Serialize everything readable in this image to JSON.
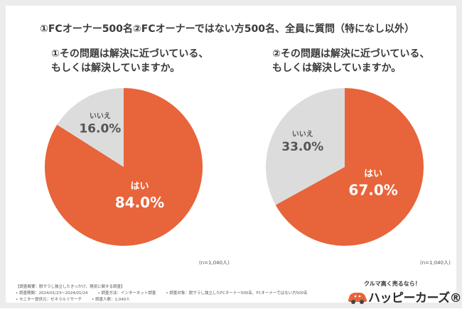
{
  "header": {
    "title": "①FCオーナー500名②FCオーナーではない方500名、全員に質問（特になし以外）"
  },
  "charts": {
    "left": {
      "question_line1": "①その問題は解決に近づいている、",
      "question_line2": "もしくは解決していますか。",
      "n_label": "(n=1,040人)"
    },
    "right": {
      "question_line1": "②その問題は解決に近づいている、",
      "question_line2": "もしくは解決していますか。",
      "n_label": "(n=1,040人)"
    }
  },
  "chart_data": [
    {
      "type": "pie",
      "title": "①その問題は解決に近づいている、もしくは解決していますか。",
      "categories": [
        "はい",
        "いいえ"
      ],
      "values": [
        84.0,
        16.0
      ],
      "value_labels": [
        "84.0%",
        "16.0%"
      ],
      "colors": [
        "#e8643a",
        "#dcdcdc"
      ],
      "label_colors": [
        "#ffffff",
        "#555555"
      ]
    },
    {
      "type": "pie",
      "title": "②その問題は解決に近づいている、もしくは解決していますか。",
      "categories": [
        "はい",
        "いいえ"
      ],
      "values": [
        67.0,
        33.0
      ],
      "value_labels": [
        "67.0%",
        "33.0%"
      ],
      "colors": [
        "#e8643a",
        "#dcdcdc"
      ],
      "label_colors": [
        "#ffffff",
        "#555555"
      ]
    }
  ],
  "footnotes": {
    "line1": "【調査概要：脱サラし独立したきっかけ、現状に関する調査】",
    "line2_a": "• 調査期間：2024/01/23～2024/01/24",
    "line2_b": "• 調査方法：インターネット調査",
    "line2_c": "• 調査対象：脱サラし独立したFCオーナー500名、FCオーナーではない方500名",
    "line3_a": "• モニター提供元：ゼネラルリサーチ",
    "line3_b": "• 調査人数：1,040人"
  },
  "brand": {
    "tagline": "クルマ高く売るなら！",
    "name": "ハッピーカーズ®"
  }
}
